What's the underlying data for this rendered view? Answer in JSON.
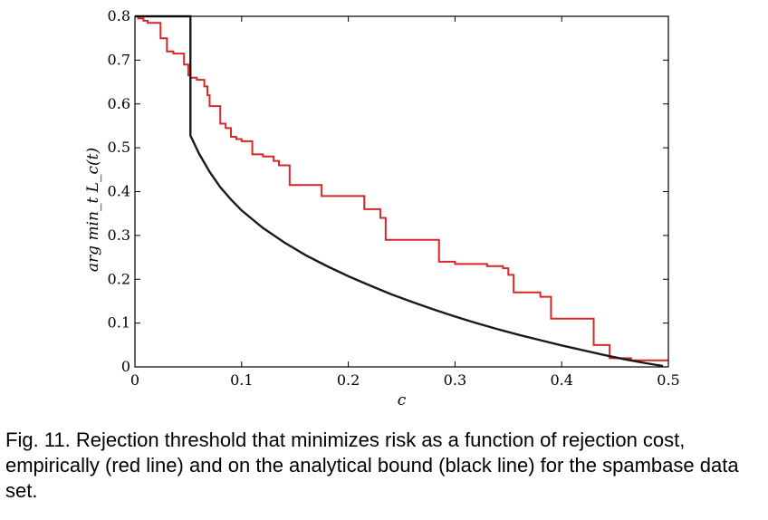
{
  "caption": "Fig. 11. Rejection threshold that minimizes risk as a function of rejection cost, empirically (red line) and on the analytical bound (black line) for the spambase data set.",
  "chart_data": {
    "type": "line",
    "xlabel": "c",
    "ylabel": "arg min_t L_c(t)",
    "xlim": [
      0,
      0.5
    ],
    "ylim": [
      0,
      0.8
    ],
    "xticks": [
      0,
      0.1,
      0.2,
      0.3,
      0.4,
      0.5
    ],
    "xtick_labels": [
      "0",
      "0.1",
      "0.2",
      "0.3",
      "0.4",
      "0.5"
    ],
    "yticks": [
      0,
      0.1,
      0.2,
      0.3,
      0.4,
      0.5,
      0.6,
      0.7,
      0.8
    ],
    "ytick_labels": [
      "0",
      "0.1",
      "0.2",
      "0.3",
      "0.4",
      "0.5",
      "0.6",
      "0.7",
      "0.8"
    ],
    "grid": false,
    "legend": "none",
    "series": [
      {
        "color": "#d62728",
        "step": true,
        "x": [
          0,
          0.003,
          0.008,
          0.012,
          0.024,
          0.03,
          0.036,
          0.046,
          0.05,
          0.052,
          0.058,
          0.065,
          0.068,
          0.07,
          0.08,
          0.085,
          0.09,
          0.095,
          0.1,
          0.11,
          0.12,
          0.13,
          0.135,
          0.145,
          0.175,
          0.215,
          0.23,
          0.235,
          0.285,
          0.3,
          0.33,
          0.345,
          0.35,
          0.355,
          0.38,
          0.39,
          0.43,
          0.44,
          0.445,
          0.465,
          0.5
        ],
        "y": [
          0.8,
          0.795,
          0.79,
          0.785,
          0.75,
          0.72,
          0.715,
          0.69,
          0.665,
          0.66,
          0.655,
          0.64,
          0.62,
          0.595,
          0.555,
          0.545,
          0.525,
          0.52,
          0.515,
          0.485,
          0.48,
          0.47,
          0.46,
          0.415,
          0.39,
          0.36,
          0.34,
          0.29,
          0.24,
          0.235,
          0.23,
          0.225,
          0.21,
          0.17,
          0.16,
          0.11,
          0.05,
          0.05,
          0.02,
          0.015,
          0.015
        ]
      },
      {
        "color": "#1a1a1a",
        "step": false,
        "x": [
          0,
          0.052,
          0.052,
          0.06,
          0.07,
          0.08,
          0.09,
          0.1,
          0.12,
          0.14,
          0.16,
          0.18,
          0.2,
          0.22,
          0.24,
          0.26,
          0.28,
          0.3,
          0.32,
          0.34,
          0.36,
          0.38,
          0.4,
          0.42,
          0.44,
          0.46,
          0.48,
          0.495
        ],
        "y": [
          0.8,
          0.8,
          0.528,
          0.487,
          0.445,
          0.41,
          0.382,
          0.357,
          0.317,
          0.284,
          0.255,
          0.23,
          0.207,
          0.186,
          0.166,
          0.148,
          0.131,
          0.115,
          0.1,
          0.086,
          0.073,
          0.061,
          0.049,
          0.038,
          0.027,
          0.017,
          0.008,
          0.002
        ]
      }
    ]
  }
}
